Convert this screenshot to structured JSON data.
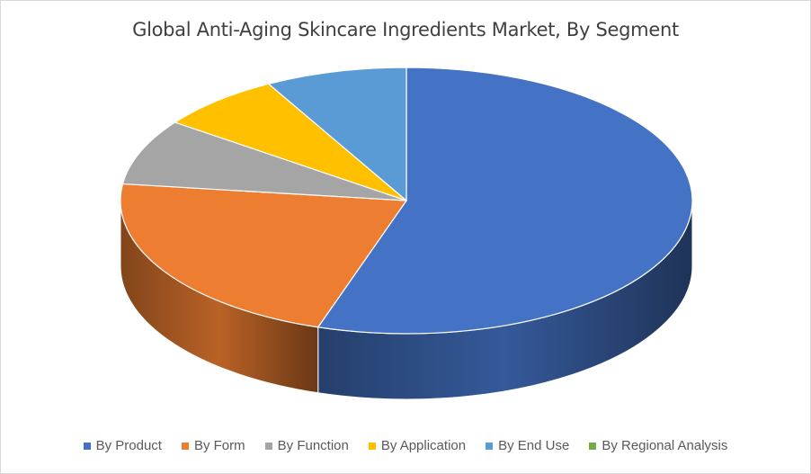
{
  "chart_data": {
    "type": "pie",
    "title": "Global Anti-Aging Skincare Ingredients Market, By Segment",
    "legend_position": "bottom",
    "style": "3d",
    "slices": [
      {
        "label": "By Product",
        "value": 55,
        "color": "#4472C4"
      },
      {
        "label": "By Form",
        "value": 22,
        "color": "#ED7D31"
      },
      {
        "label": "By Function",
        "value": 8,
        "color": "#A5A5A5"
      },
      {
        "label": "By Application",
        "value": 7,
        "color": "#FFC000"
      },
      {
        "label": "By End Use",
        "value": 8,
        "color": "#5B9BD5"
      },
      {
        "label": "By Regional Analysis",
        "value": 0,
        "color": "#70AD47"
      }
    ]
  }
}
